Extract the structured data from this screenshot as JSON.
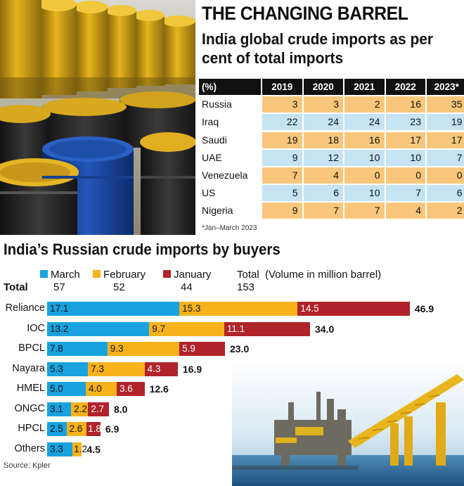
{
  "header": {
    "title": "THE CHANGING BARREL",
    "subtitle": "India global crude imports as per cent of total imports"
  },
  "table": {
    "unit_header": "(%)",
    "columns": [
      "2019",
      "2020",
      "2021",
      "2022",
      "2023*"
    ],
    "rows": [
      {
        "country": "Russia",
        "values": [
          "3",
          "3",
          "2",
          "16",
          "35"
        ]
      },
      {
        "country": "Iraq",
        "values": [
          "22",
          "24",
          "24",
          "23",
          "19"
        ]
      },
      {
        "country": "Saudi",
        "values": [
          "19",
          "18",
          "16",
          "17",
          "17"
        ]
      },
      {
        "country": "UAE",
        "values": [
          "9",
          "12",
          "10",
          "10",
          "7"
        ]
      },
      {
        "country": "Venezuela",
        "values": [
          "7",
          "4",
          "0",
          "0",
          "0"
        ]
      },
      {
        "country": "US",
        "values": [
          "5",
          "6",
          "10",
          "7",
          "6"
        ]
      },
      {
        "country": "Nigeria",
        "values": [
          "9",
          "7",
          "7",
          "4",
          "2"
        ]
      }
    ],
    "footnote": "*Jan–March 2023",
    "colors": {
      "header": "#111111",
      "blue_row": "#c5e3f3",
      "orange_row": "#f9c77b"
    }
  },
  "section": {
    "title": "India’s Russian crude imports by buyers",
    "legend": {
      "march": "March",
      "february": "February",
      "january": "January",
      "total": "Total",
      "unit_note": "(Volume in million barrel)"
    },
    "totals_row": {
      "label": "Total",
      "march": "57",
      "february": "52",
      "january": "44",
      "total": "153"
    },
    "source": "Source: Kpler"
  },
  "chart_data": {
    "type": "bar",
    "orientation": "horizontal",
    "stacked": true,
    "unit": "million barrel",
    "categories": [
      "Reliance",
      "IOC",
      "BPCL",
      "Nayara",
      "HMEL",
      "ONGC",
      "HPCL",
      "Others"
    ],
    "series": [
      {
        "name": "March",
        "color": "#18a2df",
        "values": [
          17.1,
          13.2,
          7.8,
          5.3,
          5.0,
          3.1,
          2.5,
          3.3
        ]
      },
      {
        "name": "February",
        "color": "#f7b21c",
        "values": [
          15.3,
          9.7,
          9.3,
          7.3,
          4.0,
          2.2,
          2.6,
          1.2
        ]
      },
      {
        "name": "January",
        "color": "#b0232a",
        "values": [
          14.5,
          11.1,
          5.9,
          4.3,
          3.6,
          2.7,
          1.8,
          null
        ]
      }
    ],
    "totals": [
      46.9,
      34.0,
      23.0,
      16.9,
      12.6,
      8.0,
      6.9,
      4.5
    ],
    "legend_position": "top",
    "grid": false
  }
}
